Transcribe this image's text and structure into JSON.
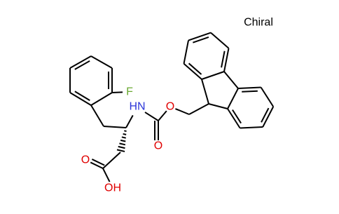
{
  "annotation": "Chiral",
  "atoms": {
    "fluorine": "F",
    "amine": "HN",
    "carbamate_carbonyl_oxygen": "O",
    "ester_oxygen": "O",
    "acid_carbonyl_oxygen": "O",
    "hydroxyl": "OH"
  }
}
